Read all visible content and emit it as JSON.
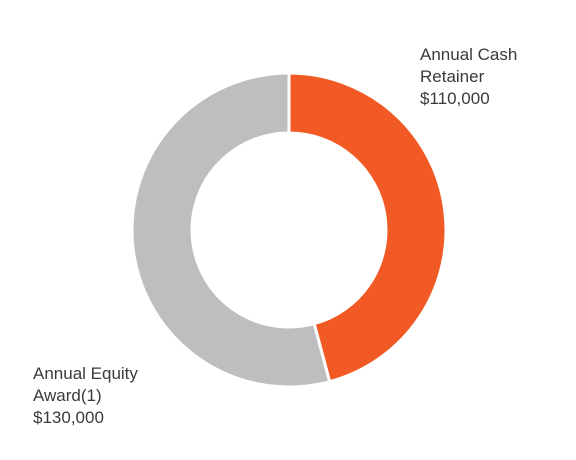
{
  "chart_data": {
    "type": "pie",
    "donut": true,
    "slices": [
      {
        "label_lines": [
          "Annual Cash",
          "Retainer"
        ],
        "value": 110000,
        "value_label": "$110,000",
        "color": "#f15a24"
      },
      {
        "label_lines": [
          "Annual Equity",
          "Award(1)"
        ],
        "value": 130000,
        "value_label": "$130,000",
        "color": "#bcbec0"
      }
    ],
    "start_angle_deg": 0,
    "direction": "clockwise",
    "separator_color": "#ffffff"
  }
}
